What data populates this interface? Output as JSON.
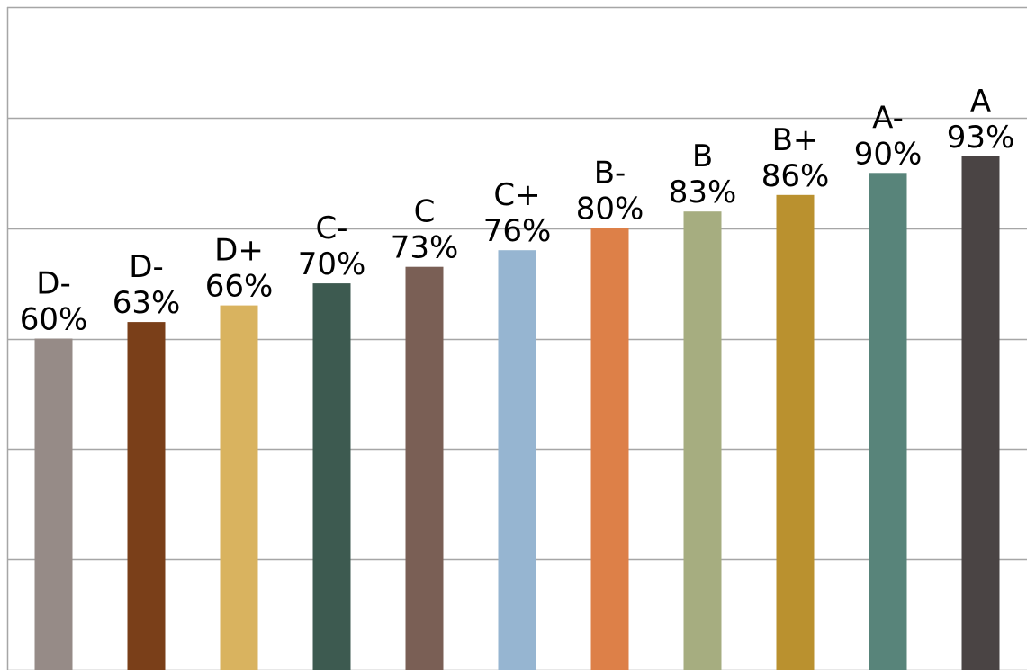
{
  "chart_data": {
    "type": "bar",
    "title": "",
    "xlabel": "",
    "ylabel": "",
    "ylim": [
      0,
      120
    ],
    "y_gridlines": [
      0,
      20,
      40,
      60,
      80,
      100,
      120
    ],
    "grid": true,
    "legend": "none",
    "categories": [
      "D-",
      "D-",
      "D+",
      "C-",
      "C",
      "C+",
      "B-",
      "B",
      "B+",
      "A-",
      "A"
    ],
    "values": [
      60,
      63,
      66,
      70,
      73,
      76,
      80,
      83,
      86,
      90,
      93
    ],
    "value_labels": [
      "60%",
      "63%",
      "66%",
      "70%",
      "73%",
      "76%",
      "80%",
      "83%",
      "86%",
      "90%",
      "93%"
    ],
    "colors": [
      "#968B87",
      "#7A3F19",
      "#D9B35F",
      "#3D5A50",
      "#7A5F55",
      "#96B5D1",
      "#DD8048",
      "#A6AD80",
      "#BA912F",
      "#58847A",
      "#4A4444"
    ],
    "gridline_color": "#a6a6a6"
  }
}
